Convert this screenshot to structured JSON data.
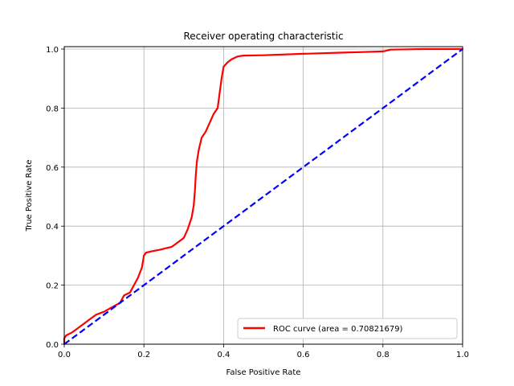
{
  "chart_data": {
    "type": "line",
    "title": "Receiver operating characteristic",
    "xlabel": "False Positive Rate",
    "ylabel": "True Positive Rate",
    "xlim": [
      0.0,
      1.0
    ],
    "ylim": [
      0.0,
      1.0
    ],
    "x_ticks": [
      "0.0",
      "0.2",
      "0.4",
      "0.6",
      "0.8",
      "1.0"
    ],
    "y_ticks": [
      "0.0",
      "0.2",
      "0.4",
      "0.6",
      "0.8",
      "1.0"
    ],
    "grid": true,
    "legend_placement": "lower-right",
    "series": [
      {
        "name": "ROC curve (area = 0.70821679)",
        "color": "#ff0000",
        "style": "solid",
        "x": [
          0.0,
          0.0,
          0.005,
          0.02,
          0.035,
          0.05,
          0.065,
          0.08,
          0.1,
          0.12,
          0.14,
          0.15,
          0.165,
          0.175,
          0.185,
          0.195,
          0.2,
          0.205,
          0.22,
          0.24,
          0.255,
          0.27,
          0.28,
          0.29,
          0.3,
          0.31,
          0.32,
          0.325,
          0.328,
          0.33,
          0.333,
          0.338,
          0.345,
          0.355,
          0.365,
          0.375,
          0.385,
          0.39,
          0.395,
          0.4,
          0.41,
          0.42,
          0.435,
          0.45,
          0.5,
          0.6,
          0.7,
          0.75,
          0.8,
          0.82,
          0.9,
          1.0
        ],
        "y": [
          0.0,
          0.02,
          0.03,
          0.04,
          0.055,
          0.07,
          0.085,
          0.1,
          0.11,
          0.125,
          0.14,
          0.165,
          0.175,
          0.2,
          0.225,
          0.26,
          0.3,
          0.31,
          0.315,
          0.32,
          0.325,
          0.33,
          0.34,
          0.35,
          0.36,
          0.39,
          0.43,
          0.47,
          0.52,
          0.57,
          0.62,
          0.66,
          0.7,
          0.72,
          0.75,
          0.78,
          0.8,
          0.85,
          0.9,
          0.94,
          0.955,
          0.965,
          0.975,
          0.978,
          0.979,
          0.984,
          0.988,
          0.99,
          0.992,
          0.998,
          1.0,
          1.0
        ]
      },
      {
        "name": "",
        "color": "#0000ff",
        "style": "dashed",
        "x": [
          0.0,
          1.0
        ],
        "y": [
          0.0,
          1.0
        ]
      }
    ]
  }
}
